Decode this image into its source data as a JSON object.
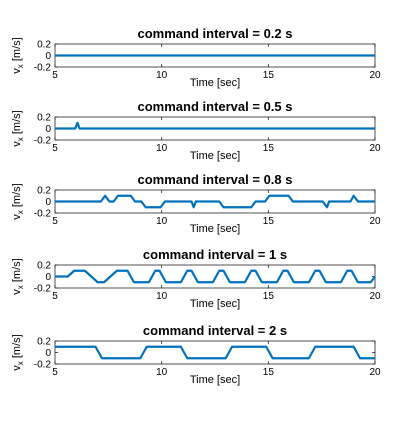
{
  "chart_data": [
    {
      "type": "line",
      "title": "command interval = 0.2 s",
      "xlabel": "Time [sec]",
      "ylabel_parts": [
        "v",
        "x",
        " [m/s]"
      ],
      "xlim": [
        5,
        20
      ],
      "ylim": [
        -0.2,
        0.2
      ],
      "xticks": [
        5,
        10,
        15,
        20
      ],
      "yticks": [
        0.2,
        0,
        -0.2
      ],
      "ytick_labels": [
        "0.2",
        "0",
        "-0.2"
      ],
      "grid": false,
      "series": [
        {
          "color": "#0072BD",
          "x": [
            5,
            20
          ],
          "y": [
            0,
            0
          ]
        }
      ]
    },
    {
      "type": "line",
      "title": "command interval = 0.5 s",
      "xlabel": "Time [sec]",
      "ylabel_parts": [
        "v",
        "x",
        " [m/s]"
      ],
      "xlim": [
        5,
        20
      ],
      "ylim": [
        -0.2,
        0.2
      ],
      "xticks": [
        5,
        10,
        15,
        20
      ],
      "yticks": [
        0.2,
        0,
        -0.2
      ],
      "ytick_labels": [
        "0.2",
        "0",
        "-0.2"
      ],
      "grid": false,
      "series": [
        {
          "color": "#0072BD",
          "x": [
            5,
            5.95,
            6.05,
            6.15,
            20
          ],
          "y": [
            0,
            0,
            0.1,
            0,
            0
          ]
        }
      ]
    },
    {
      "type": "line",
      "title": "command interval = 0.8 s",
      "xlabel": "Time [sec]",
      "ylabel_parts": [
        "v",
        "x",
        " [m/s]"
      ],
      "xlim": [
        5,
        20
      ],
      "ylim": [
        -0.2,
        0.2
      ],
      "xticks": [
        5,
        10,
        15,
        20
      ],
      "yticks": [
        0.2,
        0,
        -0.2
      ],
      "ytick_labels": [
        "0.2",
        "0",
        "-0.2"
      ],
      "grid": false,
      "series": [
        {
          "color": "#0072BD",
          "x": [
            5,
            7.15,
            7.35,
            7.55,
            7.75,
            7.95,
            8.55,
            8.75,
            9.05,
            9.25,
            9.95,
            10.15,
            11.4,
            11.5,
            11.6,
            12.7,
            12.9,
            14.2,
            14.4,
            14.85,
            15.05,
            15.95,
            16.15,
            17.55,
            17.75,
            17.85,
            18.85,
            19.0,
            19.2,
            19.3,
            20
          ],
          "y": [
            0,
            0,
            0.1,
            0,
            0,
            0.1,
            0.1,
            0,
            0,
            -0.1,
            -0.1,
            0,
            0,
            -0.1,
            0,
            0,
            -0.1,
            -0.1,
            0,
            0,
            0.1,
            0.1,
            0,
            0,
            -0.1,
            0,
            0,
            0.1,
            0,
            0,
            0
          ]
        }
      ]
    },
    {
      "type": "line",
      "title": "command interval = 1 s",
      "xlabel": "Time [sec]",
      "ylabel_parts": [
        "v",
        "x",
        " [m/s]"
      ],
      "xlim": [
        5,
        20
      ],
      "ylim": [
        -0.2,
        0.2
      ],
      "xticks": [
        5,
        10,
        15,
        20
      ],
      "yticks": [
        0.2,
        0,
        -0.2
      ],
      "ytick_labels": [
        "0.2",
        "0",
        "-0.2"
      ],
      "grid": false,
      "series": [
        {
          "color": "#0072BD",
          "x": [
            5,
            5.6,
            5.9,
            6.4,
            6.7,
            7.0,
            7.3,
            7.9,
            8.2,
            8.4,
            8.7,
            9.4,
            9.7,
            9.9,
            10.2,
            10.9,
            11.2,
            11.4,
            11.7,
            12.4,
            12.7,
            12.9,
            13.2,
            13.9,
            14.2,
            14.4,
            14.7,
            15.4,
            15.7,
            15.9,
            16.2,
            16.9,
            17.2,
            17.4,
            17.7,
            18.4,
            18.7,
            18.9,
            19.2,
            19.8,
            20
          ],
          "y": [
            0,
            0,
            0.1,
            0.1,
            0,
            -0.1,
            -0.1,
            0.1,
            0.1,
            0.1,
            -0.1,
            -0.1,
            0.1,
            0.1,
            -0.1,
            -0.1,
            0.1,
            0.1,
            -0.1,
            -0.1,
            0.1,
            0.1,
            -0.1,
            -0.1,
            0.1,
            0.1,
            -0.1,
            -0.1,
            0.1,
            0.1,
            -0.1,
            -0.1,
            0.1,
            0.1,
            -0.1,
            -0.1,
            0.1,
            0.1,
            -0.1,
            -0.1,
            0
          ]
        }
      ]
    },
    {
      "type": "line",
      "title": "command interval = 2 s",
      "xlabel": "Time [sec]",
      "ylabel_parts": [
        "v",
        "x",
        " [m/s]"
      ],
      "xlim": [
        5,
        20
      ],
      "ylim": [
        -0.2,
        0.2
      ],
      "xticks": [
        5,
        10,
        15,
        20
      ],
      "yticks": [
        0.2,
        0,
        -0.2
      ],
      "ytick_labels": [
        "0.2",
        "0",
        "-0.2"
      ],
      "grid": false,
      "series": [
        {
          "color": "#0072BD",
          "x": [
            5,
            6.9,
            7.2,
            9.0,
            9.3,
            10.9,
            11.2,
            13.0,
            13.3,
            14.9,
            15.2,
            16.9,
            17.2,
            19.0,
            19.3,
            20
          ],
          "y": [
            0.1,
            0.1,
            -0.1,
            -0.1,
            0.1,
            0.1,
            -0.1,
            -0.1,
            0.1,
            0.1,
            -0.1,
            -0.1,
            0.1,
            0.1,
            -0.1,
            -0.1
          ]
        }
      ]
    }
  ]
}
